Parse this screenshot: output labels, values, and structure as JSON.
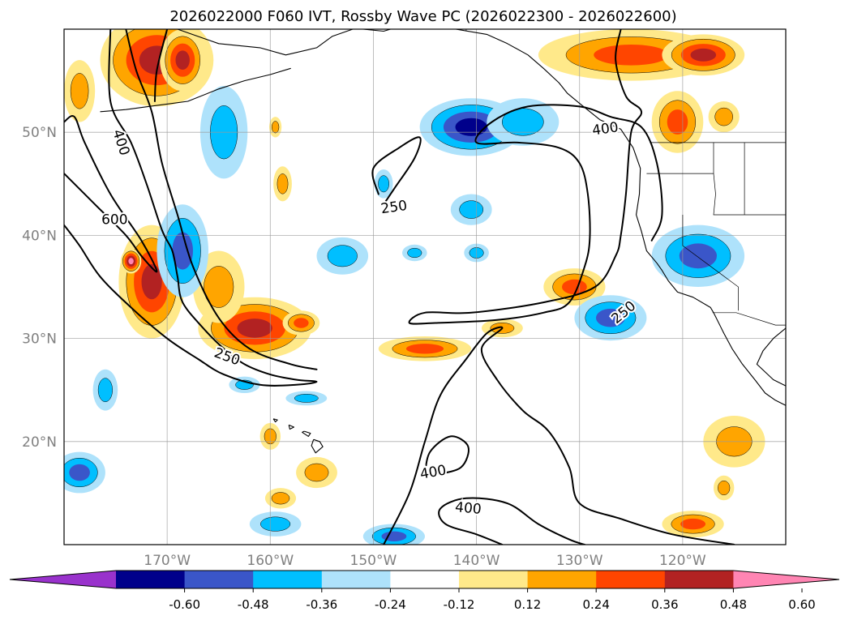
{
  "title": "2026022000 F060 IVT, Rossby Wave PC (2026022300 - 2026022600)",
  "lat_labels": [
    {
      "deg": 50,
      "text": "50°N"
    },
    {
      "deg": 40,
      "text": "40°N"
    },
    {
      "deg": 30,
      "text": "30°N"
    },
    {
      "deg": 20,
      "text": "20°N"
    }
  ],
  "lon_labels": [
    {
      "deg": -170,
      "text": "170°W"
    },
    {
      "deg": -160,
      "text": "160°W"
    },
    {
      "deg": -150,
      "text": "150°W"
    },
    {
      "deg": -140,
      "text": "140°W"
    },
    {
      "deg": -130,
      "text": "130°W"
    },
    {
      "deg": -120,
      "text": "120°W"
    }
  ],
  "map_extent": {
    "lon_min": -180,
    "lon_max": -110,
    "lat_min": 10,
    "lat_max": 60
  },
  "contour_labels": [
    {
      "text": "400",
      "lon": -174.5,
      "lat": 49.0,
      "angle": 72
    },
    {
      "text": "600",
      "lon": -175.1,
      "lat": 41.5,
      "angle": 0
    },
    {
      "text": "250",
      "lon": -148.0,
      "lat": 42.7,
      "angle": -8
    },
    {
      "text": "250",
      "lon": -164.2,
      "lat": 28.2,
      "angle": 20
    },
    {
      "text": "400",
      "lon": -127.5,
      "lat": 50.3,
      "angle": -8
    },
    {
      "text": "250",
      "lon": -125.7,
      "lat": 32.5,
      "angle": -40
    },
    {
      "text": "400",
      "lon": -144.2,
      "lat": 17.0,
      "angle": -10
    },
    {
      "text": "400",
      "lon": -140.8,
      "lat": 13.5,
      "angle": 5
    }
  ],
  "colorbar": {
    "colors": [
      "#9932cc",
      "#00008b",
      "#3a56c9",
      "#00bfff",
      "#aee2fb",
      "#ffffff",
      "#ffe98a",
      "#ffa500",
      "#ff4500",
      "#b22222",
      "#ff85b3"
    ],
    "ticks": [
      "-0.60",
      "-0.48",
      "-0.36",
      "-0.24",
      "-0.12",
      "0.12",
      "0.24",
      "0.36",
      "0.48",
      "0.60"
    ]
  },
  "level_colors": {
    "pos": [
      "#ffe98a",
      "#ffa500",
      "#ff4500",
      "#b22222",
      "#ff85b3"
    ],
    "neg": [
      "#aee2fb",
      "#00bfff",
      "#3a56c9",
      "#00008b"
    ]
  },
  "anomaly_blobs": [
    {
      "sign": "pos",
      "lon": -171,
      "lat": 57,
      "rlon": 5.5,
      "rlat": 4.5,
      "peak": 4
    },
    {
      "sign": "pos",
      "lon": -178.5,
      "lat": 54,
      "rlon": 1.5,
      "rlat": 3,
      "peak": 2
    },
    {
      "sign": "pos",
      "lon": -168.5,
      "lat": 57,
      "rlon": 2.2,
      "rlat": 3,
      "peak": 4
    },
    {
      "sign": "pos",
      "lon": -171.5,
      "lat": 35.5,
      "rlon": 3.2,
      "rlat": 5.5,
      "peak": 4
    },
    {
      "sign": "pos",
      "lon": -173.5,
      "lat": 37.5,
      "rlon": 1,
      "rlat": 1.2,
      "peak": 5
    },
    {
      "sign": "pos",
      "lon": -161.5,
      "lat": 31,
      "rlon": 5.5,
      "rlat": 3,
      "peak": 4
    },
    {
      "sign": "pos",
      "lon": -165,
      "lat": 35,
      "rlon": 2.5,
      "rlat": 3.5,
      "peak": 2
    },
    {
      "sign": "pos",
      "lon": -157,
      "lat": 31.5,
      "rlon": 1.8,
      "rlat": 1.2,
      "peak": 3
    },
    {
      "sign": "pos",
      "lon": -145,
      "lat": 29,
      "rlon": 4.5,
      "rlat": 1.2,
      "peak": 3
    },
    {
      "sign": "pos",
      "lon": -137.5,
      "lat": 31,
      "rlon": 2,
      "rlat": 0.9,
      "peak": 2
    },
    {
      "sign": "pos",
      "lon": -130.5,
      "lat": 35,
      "rlon": 3,
      "rlat": 1.8,
      "peak": 3
    },
    {
      "sign": "pos",
      "lon": -155.5,
      "lat": 17,
      "rlon": 2,
      "rlat": 1.5,
      "peak": 2
    },
    {
      "sign": "pos",
      "lon": -160,
      "lat": 20.5,
      "rlon": 1,
      "rlat": 1.3,
      "peak": 2
    },
    {
      "sign": "pos",
      "lon": -159,
      "lat": 14.5,
      "rlon": 1.5,
      "rlat": 1,
      "peak": 2
    },
    {
      "sign": "pos",
      "lon": -158.8,
      "lat": 45,
      "rlon": 0.9,
      "rlat": 1.7,
      "peak": 2
    },
    {
      "sign": "pos",
      "lon": -159.5,
      "lat": 50.5,
      "rlon": 0.6,
      "rlat": 1,
      "peak": 2
    },
    {
      "sign": "pos",
      "lon": -125,
      "lat": 57.5,
      "rlon": 9,
      "rlat": 2.5,
      "peak": 3
    },
    {
      "sign": "pos",
      "lon": -118,
      "lat": 57.5,
      "rlon": 4,
      "rlat": 2,
      "peak": 4
    },
    {
      "sign": "pos",
      "lon": -120.5,
      "lat": 51,
      "rlon": 2.5,
      "rlat": 3,
      "peak": 3
    },
    {
      "sign": "pos",
      "lon": -116,
      "lat": 51.5,
      "rlon": 1.5,
      "rlat": 1.5,
      "peak": 2
    },
    {
      "sign": "pos",
      "lon": -115,
      "lat": 20,
      "rlon": 3,
      "rlat": 2.5,
      "peak": 2
    },
    {
      "sign": "pos",
      "lon": -119,
      "lat": 12,
      "rlon": 3,
      "rlat": 1.3,
      "peak": 3
    },
    {
      "sign": "pos",
      "lon": -116,
      "lat": 15.5,
      "rlon": 1,
      "rlat": 1.2,
      "peak": 2
    },
    {
      "sign": "neg",
      "lon": -140.5,
      "lat": 50.5,
      "rlon": 5,
      "rlat": 2.8,
      "peak": 4
    },
    {
      "sign": "neg",
      "lon": -135.5,
      "lat": 51,
      "rlon": 3.5,
      "rlat": 2.3,
      "peak": 2
    },
    {
      "sign": "neg",
      "lon": -168.5,
      "lat": 38.5,
      "rlon": 2.5,
      "rlat": 4.5,
      "peak": 3
    },
    {
      "sign": "neg",
      "lon": -164.5,
      "lat": 50,
      "rlon": 2.3,
      "rlat": 4.5,
      "peak": 2
    },
    {
      "sign": "neg",
      "lon": -118.5,
      "lat": 38,
      "rlon": 4.5,
      "rlat": 3,
      "peak": 3
    },
    {
      "sign": "neg",
      "lon": -127,
      "lat": 32,
      "rlon": 3.5,
      "rlat": 2.2,
      "peak": 3
    },
    {
      "sign": "neg",
      "lon": -153,
      "lat": 38,
      "rlon": 2.5,
      "rlat": 1.8,
      "peak": 2
    },
    {
      "sign": "neg",
      "lon": -140.5,
      "lat": 42.5,
      "rlon": 2,
      "rlat": 1.5,
      "peak": 2
    },
    {
      "sign": "neg",
      "lon": -140,
      "lat": 38.3,
      "rlon": 1.2,
      "rlat": 0.9,
      "peak": 2
    },
    {
      "sign": "neg",
      "lon": -146,
      "lat": 38.3,
      "rlon": 1.2,
      "rlat": 0.8,
      "peak": 2
    },
    {
      "sign": "neg",
      "lon": -176,
      "lat": 25,
      "rlon": 1.2,
      "rlat": 2,
      "peak": 2
    },
    {
      "sign": "neg",
      "lon": -178.5,
      "lat": 17,
      "rlon": 2.5,
      "rlat": 2,
      "peak": 3
    },
    {
      "sign": "neg",
      "lon": -159.5,
      "lat": 12,
      "rlon": 2.5,
      "rlat": 1.2,
      "peak": 2
    },
    {
      "sign": "neg",
      "lon": -148,
      "lat": 10.8,
      "rlon": 3,
      "rlat": 1.2,
      "peak": 3
    },
    {
      "sign": "neg",
      "lon": -162.5,
      "lat": 25.5,
      "rlon": 1.5,
      "rlat": 0.8,
      "peak": 2
    },
    {
      "sign": "neg",
      "lon": -156.5,
      "lat": 24.2,
      "rlon": 2,
      "rlat": 0.7,
      "peak": 2
    },
    {
      "sign": "neg",
      "lon": -149,
      "lat": 45,
      "rlon": 0.9,
      "rlat": 1.4,
      "peak": 2
    }
  ],
  "ivt_contours": [
    {
      "points": [
        [
          -175.5,
          60
        ],
        [
          -175.5,
          53
        ],
        [
          -173.5,
          49
        ],
        [
          -172,
          45
        ],
        [
          -170.5,
          40.5
        ],
        [
          -169.5,
          38.5
        ],
        [
          -169,
          36
        ],
        [
          -168.5,
          33.5
        ],
        [
          -166.5,
          31
        ],
        [
          -164.5,
          29
        ],
        [
          -162.5,
          27.5
        ],
        [
          -160,
          26.5
        ],
        [
          -157.5,
          26
        ],
        [
          -155.5,
          25.8
        ],
        [
          -157.5,
          25.5
        ],
        [
          -161,
          25.5
        ],
        [
          -164.5,
          26.5
        ],
        [
          -167,
          28
        ],
        [
          -170,
          30
        ],
        [
          -173.5,
          33
        ],
        [
          -176.5,
          36
        ],
        [
          -178.5,
          39
        ],
        [
          -180,
          41
        ]
      ]
    },
    {
      "points": [
        [
          -174,
          60
        ],
        [
          -173,
          56
        ],
        [
          -171.5,
          52
        ],
        [
          -170.5,
          47
        ],
        [
          -169,
          42
        ],
        [
          -167.5,
          37
        ],
        [
          -165,
          32
        ],
        [
          -162,
          29
        ],
        [
          -158,
          27.5
        ],
        [
          -155.5,
          27
        ]
      ]
    },
    {
      "points": [
        [
          -170,
          60
        ],
        [
          -171,
          56
        ],
        [
          -171.2,
          53
        ]
      ]
    },
    {
      "points": [
        [
          -180,
          46
        ],
        [
          -177,
          43
        ],
        [
          -174,
          40
        ],
        [
          -172.5,
          38
        ],
        [
          -171,
          36.5
        ],
        [
          -172.5,
          39.5
        ],
        [
          -175.5,
          44
        ],
        [
          -178,
          49
        ],
        [
          -179,
          51.5
        ],
        [
          -180,
          51
        ]
      ]
    },
    {
      "points": [
        [
          -149.5,
          44
        ],
        [
          -150,
          46.5
        ],
        [
          -147.5,
          48.5
        ],
        [
          -145.5,
          49.5
        ],
        [
          -146,
          47.5
        ],
        [
          -148,
          44.5
        ],
        [
          -149,
          43
        ]
      ]
    },
    {
      "points": [
        [
          -126,
          60
        ],
        [
          -126.5,
          57
        ],
        [
          -125.5,
          53.5
        ],
        [
          -124,
          52
        ],
        [
          -125,
          50
        ],
        [
          -125.5,
          44
        ],
        [
          -126,
          40
        ],
        [
          -126.5,
          38
        ],
        [
          -128.5,
          35
        ],
        [
          -133.5,
          33.5
        ],
        [
          -140.5,
          32.5
        ],
        [
          -145,
          32.5
        ],
        [
          -146.5,
          31.5
        ],
        [
          -144,
          31.5
        ],
        [
          -138,
          31.8
        ],
        [
          -133.5,
          32.5
        ],
        [
          -131,
          33.5
        ],
        [
          -129.5,
          37
        ],
        [
          -129,
          39.8
        ],
        [
          -129.2,
          44
        ],
        [
          -130,
          47
        ],
        [
          -132,
          48.5
        ],
        [
          -136,
          49
        ],
        [
          -140,
          49
        ],
        [
          -138.5,
          51
        ],
        [
          -135,
          52.5
        ],
        [
          -130,
          52.5
        ],
        [
          -127,
          51.5
        ],
        [
          -124,
          50.5
        ],
        [
          -122.5,
          47
        ],
        [
          -122,
          42
        ],
        [
          -123,
          39.5
        ]
      ]
    },
    {
      "points": [
        [
          -149,
          10
        ],
        [
          -146.5,
          15
        ],
        [
          -145,
          20
        ],
        [
          -143.5,
          24.5
        ],
        [
          -141,
          28
        ],
        [
          -139,
          30.5
        ],
        [
          -137.5,
          31
        ],
        [
          -139.5,
          29
        ],
        [
          -138,
          26
        ],
        [
          -135.5,
          23
        ],
        [
          -133,
          21
        ],
        [
          -131,
          17.5
        ],
        [
          -130,
          14
        ],
        [
          -126,
          12.5
        ],
        [
          -121,
          11
        ],
        [
          -115,
          10
        ]
      ]
    },
    {
      "points": [
        [
          -137.5,
          10
        ],
        [
          -140,
          11
        ],
        [
          -143,
          12
        ],
        [
          -143.5,
          13.5
        ],
        [
          -141,
          14.5
        ],
        [
          -137,
          14
        ],
        [
          -134,
          12
        ],
        [
          -131,
          10.5
        ],
        [
          -129.5,
          10
        ]
      ]
    },
    {
      "points": [
        [
          -145,
          16.8
        ],
        [
          -144.5,
          19
        ],
        [
          -142.5,
          20.5
        ],
        [
          -140.8,
          19.5
        ],
        [
          -141.5,
          17.5
        ],
        [
          -144,
          16.8
        ],
        [
          -145,
          16.8
        ]
      ]
    }
  ],
  "coastlines": [
    [
      [
        -169,
        60
      ],
      [
        -165,
        58.6
      ],
      [
        -161,
        58.2
      ],
      [
        -158.5,
        57.5
      ],
      [
        -155.5,
        58.2
      ],
      [
        -154,
        59.3
      ],
      [
        -152,
        60
      ]
    ],
    [
      [
        -176.5,
        52
      ],
      [
        -174,
        52.2
      ],
      [
        -171,
        52.6
      ],
      [
        -168,
        53
      ],
      [
        -165,
        54.2
      ],
      [
        -162.5,
        55
      ],
      [
        -160,
        55.6
      ],
      [
        -158,
        56.2
      ]
    ],
    [
      [
        -151,
        60
      ],
      [
        -149,
        59.8
      ],
      [
        -147,
        60.4
      ],
      [
        -145,
        60.3
      ],
      [
        -142,
        60
      ],
      [
        -139,
        59.5
      ],
      [
        -137,
        58.6
      ],
      [
        -135,
        57.5
      ],
      [
        -133.5,
        56.2
      ],
      [
        -132,
        54.8
      ],
      [
        -131.2,
        53.8
      ],
      [
        -130,
        52.8
      ],
      [
        -128,
        51.2
      ],
      [
        -126,
        50.3
      ],
      [
        -124.8,
        48.5
      ],
      [
        -124.1,
        46.5
      ],
      [
        -124.2,
        44
      ],
      [
        -124.5,
        42
      ],
      [
        -124,
        40.4
      ],
      [
        -123.5,
        38.5
      ],
      [
        -122.5,
        37.3
      ],
      [
        -122,
        36.6
      ],
      [
        -121.4,
        35.6
      ],
      [
        -120.5,
        34.5
      ],
      [
        -119,
        34
      ],
      [
        -117.3,
        33
      ],
      [
        -117,
        32.5
      ],
      [
        -116,
        30.5
      ],
      [
        -115.2,
        29
      ],
      [
        -114.2,
        27.5
      ],
      [
        -113,
        26
      ],
      [
        -112,
        24.7
      ],
      [
        -111,
        24
      ],
      [
        -110,
        23.5
      ]
    ],
    [
      [
        -110,
        31
      ],
      [
        -111.2,
        30
      ],
      [
        -112.2,
        28.8
      ],
      [
        -112.8,
        27.5
      ],
      [
        -111.2,
        26
      ],
      [
        -110,
        25.4
      ]
    ],
    [
      [
        -155.8,
        20.2
      ],
      [
        -155.2,
        20
      ],
      [
        -154.9,
        19.5
      ],
      [
        -155.6,
        18.9
      ],
      [
        -156,
        19.6
      ],
      [
        -155.8,
        20.2
      ]
    ],
    [
      [
        -156.7,
        21
      ],
      [
        -156.1,
        20.8
      ],
      [
        -156.3,
        20.5
      ],
      [
        -156.9,
        20.9
      ],
      [
        -156.7,
        21
      ]
    ],
    [
      [
        -158.2,
        21.6
      ],
      [
        -157.7,
        21.4
      ],
      [
        -158.1,
        21.2
      ],
      [
        -158.2,
        21.6
      ]
    ],
    [
      [
        -159.7,
        22.2
      ],
      [
        -159.3,
        22.1
      ],
      [
        -159.5,
        21.9
      ],
      [
        -159.7,
        22.2
      ]
    ]
  ],
  "borders": [
    [
      [
        -123.2,
        49
      ],
      [
        -110,
        49
      ]
    ],
    [
      [
        -141,
        60
      ],
      [
        -141,
        59.8
      ]
    ],
    [
      [
        -117.1,
        32.5
      ],
      [
        -114.8,
        32.5
      ],
      [
        -111,
        31.3
      ],
      [
        -110,
        31.3
      ]
    ],
    [
      [
        -117,
        49
      ],
      [
        -117,
        46
      ],
      [
        -116.8,
        44
      ],
      [
        -117,
        42
      ],
      [
        -110,
        42
      ]
    ],
    [
      [
        -120,
        42
      ],
      [
        -120,
        39
      ],
      [
        -114.6,
        35
      ],
      [
        -114.6,
        32.7
      ]
    ],
    [
      [
        -123.5,
        46
      ],
      [
        -117,
        46
      ]
    ],
    [
      [
        -114,
        49
      ],
      [
        -114,
        42
      ]
    ]
  ]
}
